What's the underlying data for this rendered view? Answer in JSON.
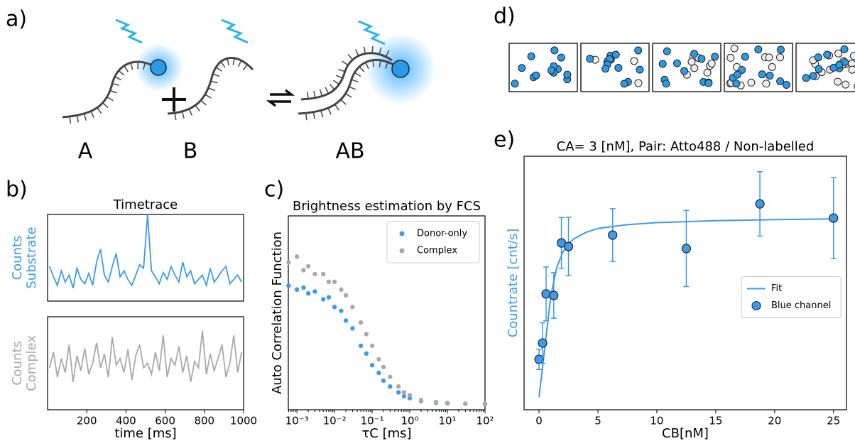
{
  "panel_labels": [
    "a)",
    "b)",
    "c)",
    "d)",
    "e)"
  ],
  "diagram": {
    "labels": [
      "A",
      "B",
      "AB"
    ]
  },
  "chart_data": [
    {
      "type": "line",
      "title": "Timetrace",
      "ylabel": [
        "Counts",
        "Substrate"
      ],
      "color": "#3d9be9",
      "x": [
        10,
        30,
        50,
        70,
        90,
        110,
        130,
        150,
        170,
        190,
        210,
        230,
        250,
        270,
        290,
        310,
        330,
        350,
        370,
        390,
        410,
        430,
        450,
        470,
        490,
        510,
        530,
        550,
        570,
        590,
        610,
        630,
        650,
        670,
        690,
        710,
        730,
        750,
        770,
        790,
        810,
        830,
        850,
        870,
        890,
        910,
        930,
        950,
        970,
        990
      ],
      "values": [
        40,
        28,
        18,
        35,
        22,
        30,
        15,
        38,
        25,
        20,
        32,
        18,
        45,
        60,
        30,
        22,
        40,
        55,
        28,
        35,
        25,
        18,
        30,
        42,
        38,
        100,
        35,
        28,
        20,
        33,
        25,
        40,
        30,
        22,
        45,
        28,
        35,
        20,
        25,
        30,
        18,
        38,
        22,
        28,
        35,
        40,
        20,
        25,
        30,
        22
      ],
      "xlim": [
        0,
        1000
      ],
      "ylim": [
        0,
        100
      ]
    },
    {
      "type": "line",
      "ylabel": [
        "Counts",
        "Complex"
      ],
      "xlabel": "time [ms]",
      "color": "#a9a9a9",
      "x": [
        10,
        30,
        50,
        70,
        90,
        110,
        130,
        150,
        170,
        190,
        210,
        230,
        250,
        270,
        290,
        310,
        330,
        350,
        370,
        390,
        410,
        430,
        450,
        470,
        490,
        510,
        530,
        550,
        570,
        590,
        610,
        630,
        650,
        670,
        690,
        710,
        730,
        750,
        770,
        790,
        810,
        830,
        850,
        870,
        890,
        910,
        930,
        950,
        970,
        990
      ],
      "values": [
        45,
        62,
        35,
        55,
        40,
        70,
        30,
        58,
        42,
        66,
        38,
        50,
        72,
        45,
        60,
        35,
        78,
        48,
        55,
        40,
        65,
        32,
        58,
        70,
        45,
        50,
        38,
        62,
        42,
        80,
        35,
        55,
        48,
        68,
        40,
        58,
        30,
        52,
        45,
        85,
        38,
        60,
        42,
        55,
        70,
        35,
        50,
        80,
        40,
        62
      ],
      "xlim": [
        0,
        1000
      ],
      "ylim": [
        0,
        100
      ],
      "xticks": [
        200,
        400,
        600,
        800,
        1000
      ]
    },
    {
      "type": "scatter",
      "title": "Brightness estimation by FCS",
      "ylabel": "Auto Correlation Function",
      "xlabel": "τC [ms]",
      "xscale": "log",
      "xlim": [
        0.00059,
        100
      ],
      "ylim": [
        0,
        1
      ],
      "legend": "upper right",
      "xticks": [
        {
          "value": 0.001,
          "label": "10⁻³"
        },
        {
          "value": 0.01,
          "label": "10⁻²"
        },
        {
          "value": 0.1,
          "label": "10⁻¹"
        },
        {
          "value": 1,
          "label": "10⁰"
        },
        {
          "value": 10,
          "label": "10¹"
        },
        {
          "value": 100,
          "label": "10²"
        }
      ],
      "series": [
        {
          "name": "Donor-only",
          "color": "#3d9be9",
          "x": [
            0.0006,
            0.001,
            0.0015,
            0.002,
            0.003,
            0.005,
            0.007,
            0.01,
            0.015,
            0.02,
            0.03,
            0.05,
            0.07,
            0.1,
            0.15,
            0.2,
            0.3,
            0.5,
            0.7,
            1,
            2,
            5,
            10,
            30,
            100
          ],
          "values": [
            0.64,
            0.62,
            0.63,
            0.6,
            0.61,
            0.57,
            0.58,
            0.53,
            0.51,
            0.46,
            0.42,
            0.33,
            0.29,
            0.23,
            0.19,
            0.15,
            0.12,
            0.09,
            0.07,
            0.06,
            0.045,
            0.036,
            0.033,
            0.031,
            0.03
          ]
        },
        {
          "name": "Complex",
          "color": "#a9a9a9",
          "x": [
            0.0006,
            0.001,
            0.0015,
            0.002,
            0.003,
            0.005,
            0.007,
            0.01,
            0.015,
            0.02,
            0.03,
            0.05,
            0.07,
            0.1,
            0.15,
            0.2,
            0.3,
            0.5,
            0.7,
            1,
            2,
            5,
            10,
            30,
            100
          ],
          "values": [
            0.76,
            0.79,
            0.72,
            0.74,
            0.7,
            0.7,
            0.66,
            0.66,
            0.62,
            0.59,
            0.53,
            0.45,
            0.39,
            0.33,
            0.26,
            0.22,
            0.17,
            0.12,
            0.09,
            0.075,
            0.05,
            0.04,
            0.035,
            0.032,
            0.031
          ]
        }
      ]
    },
    {
      "type": "scatter",
      "title": "CA= 3 [nM], Pair: Atto488 / Non-labelled",
      "ylabel": "Countrate [cnt/s]",
      "ylabel_color": "#3d9be9",
      "xlabel": "CB[nM]",
      "xlim": [
        -1.27,
        26.1
      ],
      "ylim": [
        0,
        100
      ],
      "xticks": [
        0,
        5,
        10,
        15,
        20,
        25
      ],
      "legend": "center right",
      "series": [
        {
          "name": "Fit",
          "color": "#3d9be9",
          "kind": "line",
          "x": [
            0,
            0.5,
            1,
            1.5,
            2,
            2.5,
            3,
            4,
            5,
            7.5,
            10,
            15,
            20,
            25
          ],
          "values": [
            5,
            25,
            45,
            56,
            62,
            65.5,
            67.5,
            70,
            71.5,
            73,
            73.8,
            74.6,
            75,
            75.3
          ]
        },
        {
          "name": "Blue channel",
          "color": "#3d9be9",
          "kind": "errorbar",
          "x": [
            0,
            0.3,
            0.6,
            1.25,
            1.9,
            2.5,
            6.25,
            12.5,
            18.75,
            25
          ],
          "values": [
            19.9,
            26.3,
            45.7,
            45.1,
            65.8,
            64.4,
            68.9,
            63.6,
            81.2,
            75.6
          ],
          "errors": [
            4,
            8,
            10.6,
            9,
            10,
            11.5,
            10.4,
            15,
            12.7,
            16
          ]
        }
      ]
    }
  ]
}
